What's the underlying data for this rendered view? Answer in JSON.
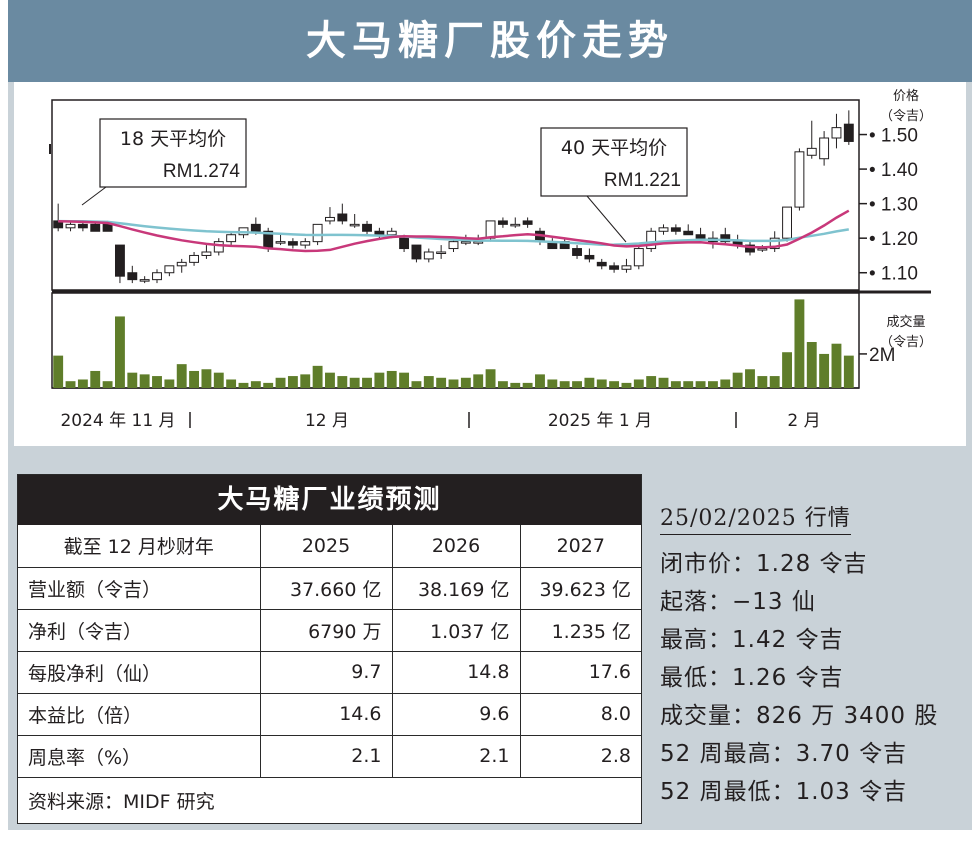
{
  "title": "大马糖厂股价走势",
  "price_axis_label": [
    "价格",
    "（令吉）"
  ],
  "volume_axis_label": [
    "成交量",
    "（令吉）"
  ],
  "ma18": {
    "label": "18 天平均价",
    "value": "RM1.274"
  },
  "ma40": {
    "label": "40 天平均价",
    "value": "RM1.221"
  },
  "colors": {
    "title_bar": "#6a8aa1",
    "panel": "#c9d2d8",
    "ma18": "#c8387a",
    "ma40": "#7fc3cf",
    "volume": "#5f7d2a",
    "candle": "#231f20"
  },
  "chart_data": {
    "type": "candlestick",
    "price_ticks": [
      "1.50",
      "1.40",
      "1.30",
      "1.20",
      "1.10"
    ],
    "price_ylim": [
      1.05,
      1.6
    ],
    "volume_tick": "2M",
    "x_labels": [
      "2024 年 11 月",
      "12 月",
      "2025 年 1 月",
      "2 月"
    ],
    "candles": [
      [
        1.25,
        1.3,
        1.22,
        1.23
      ],
      [
        1.23,
        1.25,
        1.22,
        1.24
      ],
      [
        1.24,
        1.25,
        1.22,
        1.23
      ],
      [
        1.24,
        1.25,
        1.22,
        1.22
      ],
      [
        1.24,
        1.25,
        1.22,
        1.22
      ],
      [
        1.18,
        1.18,
        1.07,
        1.09
      ],
      [
        1.1,
        1.12,
        1.07,
        1.08
      ],
      [
        1.08,
        1.09,
        1.07,
        1.08
      ],
      [
        1.08,
        1.11,
        1.07,
        1.1
      ],
      [
        1.1,
        1.12,
        1.09,
        1.12
      ],
      [
        1.12,
        1.14,
        1.1,
        1.13
      ],
      [
        1.13,
        1.16,
        1.12,
        1.15
      ],
      [
        1.15,
        1.18,
        1.14,
        1.16
      ],
      [
        1.16,
        1.2,
        1.15,
        1.19
      ],
      [
        1.19,
        1.22,
        1.18,
        1.21
      ],
      [
        1.21,
        1.23,
        1.2,
        1.23
      ],
      [
        1.24,
        1.26,
        1.21,
        1.22
      ],
      [
        1.22,
        1.23,
        1.16,
        1.17
      ],
      [
        1.19,
        1.21,
        1.18,
        1.19
      ],
      [
        1.19,
        1.2,
        1.17,
        1.18
      ],
      [
        1.18,
        1.2,
        1.17,
        1.19
      ],
      [
        1.19,
        1.24,
        1.18,
        1.24
      ],
      [
        1.25,
        1.29,
        1.24,
        1.26
      ],
      [
        1.27,
        1.3,
        1.24,
        1.25
      ],
      [
        1.24,
        1.27,
        1.23,
        1.24
      ],
      [
        1.24,
        1.25,
        1.21,
        1.22
      ],
      [
        1.22,
        1.23,
        1.2,
        1.21
      ],
      [
        1.21,
        1.23,
        1.2,
        1.22
      ],
      [
        1.2,
        1.21,
        1.16,
        1.17
      ],
      [
        1.18,
        1.18,
        1.13,
        1.14
      ],
      [
        1.14,
        1.17,
        1.13,
        1.16
      ],
      [
        1.16,
        1.18,
        1.14,
        1.16
      ],
      [
        1.17,
        1.2,
        1.16,
        1.19
      ],
      [
        1.19,
        1.21,
        1.18,
        1.19
      ],
      [
        1.19,
        1.21,
        1.18,
        1.19
      ],
      [
        1.2,
        1.25,
        1.19,
        1.25
      ],
      [
        1.25,
        1.26,
        1.23,
        1.24
      ],
      [
        1.24,
        1.26,
        1.23,
        1.24
      ],
      [
        1.25,
        1.26,
        1.23,
        1.24
      ],
      [
        1.22,
        1.23,
        1.18,
        1.19
      ],
      [
        1.19,
        1.2,
        1.17,
        1.17
      ],
      [
        1.19,
        1.2,
        1.17,
        1.17
      ],
      [
        1.17,
        1.18,
        1.14,
        1.15
      ],
      [
        1.15,
        1.17,
        1.13,
        1.14
      ],
      [
        1.13,
        1.14,
        1.11,
        1.12
      ],
      [
        1.12,
        1.13,
        1.1,
        1.11
      ],
      [
        1.11,
        1.14,
        1.1,
        1.12
      ],
      [
        1.12,
        1.18,
        1.11,
        1.17
      ],
      [
        1.17,
        1.23,
        1.16,
        1.22
      ],
      [
        1.22,
        1.24,
        1.21,
        1.23
      ],
      [
        1.23,
        1.24,
        1.21,
        1.22
      ],
      [
        1.22,
        1.24,
        1.21,
        1.21
      ],
      [
        1.21,
        1.23,
        1.19,
        1.2
      ],
      [
        1.2,
        1.22,
        1.17,
        1.19
      ],
      [
        1.21,
        1.23,
        1.18,
        1.19
      ],
      [
        1.19,
        1.21,
        1.17,
        1.18
      ],
      [
        1.18,
        1.19,
        1.15,
        1.16
      ],
      [
        1.17,
        1.18,
        1.16,
        1.17
      ],
      [
        1.17,
        1.22,
        1.16,
        1.2
      ],
      [
        1.2,
        1.29,
        1.19,
        1.29
      ],
      [
        1.29,
        1.46,
        1.28,
        1.45
      ],
      [
        1.44,
        1.54,
        1.43,
        1.46
      ],
      [
        1.43,
        1.51,
        1.41,
        1.49
      ],
      [
        1.49,
        1.56,
        1.46,
        1.52
      ],
      [
        1.53,
        1.57,
        1.47,
        1.48
      ]
    ],
    "volume": [
      1.9,
      0.4,
      0.5,
      1.0,
      0.4,
      4.2,
      0.9,
      0.8,
      0.7,
      0.5,
      1.4,
      1.0,
      1.1,
      0.9,
      0.5,
      0.3,
      0.4,
      0.3,
      0.6,
      0.7,
      0.8,
      1.3,
      0.9,
      0.7,
      0.6,
      0.6,
      0.9,
      1.0,
      0.9,
      0.4,
      0.7,
      0.6,
      0.5,
      0.6,
      0.8,
      1.1,
      0.4,
      0.3,
      0.3,
      0.8,
      0.5,
      0.4,
      0.4,
      0.6,
      0.5,
      0.4,
      0.3,
      0.5,
      0.7,
      0.6,
      0.4,
      0.4,
      0.4,
      0.4,
      0.5,
      0.9,
      1.1,
      0.7,
      0.7,
      2.1,
      5.2,
      2.7,
      2.0,
      2.6,
      1.9
    ]
  },
  "forecast": {
    "title": "大马糖厂业绩预测",
    "header": [
      "截至 12 月杪财年",
      "2025",
      "2026",
      "2027"
    ],
    "rows": [
      [
        "营业额（令吉）",
        "37.660 亿",
        "38.169 亿",
        "39.623 亿"
      ],
      [
        "净利（令吉）",
        "6790 万",
        "1.037 亿",
        "1.235 亿"
      ],
      [
        "每股净利（仙）",
        "9.7",
        "14.8",
        "17.6"
      ],
      [
        "本益比（倍）",
        "14.6",
        "9.6",
        "8.0"
      ],
      [
        "周息率（%）",
        "2.1",
        "2.1",
        "2.8"
      ]
    ],
    "source": "资料来源：MIDF 研究"
  },
  "market": {
    "date": "25/02/2025 行情",
    "rows": [
      "闭市价：1.28 令吉",
      "起落：−13 仙",
      "最高：1.42 令吉",
      "最低：1.26 令吉",
      "成交量：826 万 3400 股",
      "52 周最高：3.70 令吉",
      "52 周最低：1.03 令吉"
    ]
  }
}
